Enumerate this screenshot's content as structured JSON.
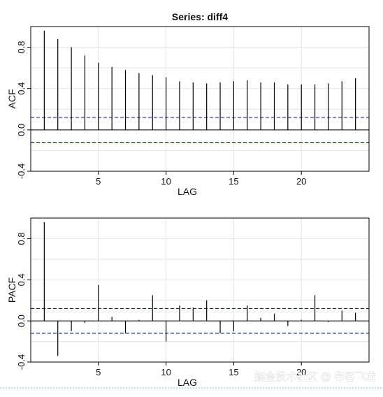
{
  "watermark": "掘金技术社区 @ 布客飞龙",
  "chart_data": [
    {
      "type": "bar",
      "title": "Series:  diff4",
      "xlabel": "LAG",
      "ylabel": "ACF",
      "xlim": [
        0,
        25
      ],
      "ylim": [
        -0.4,
        1.0
      ],
      "xticks": [
        5,
        10,
        15,
        20
      ],
      "yticks": [
        -0.4,
        0.0,
        0.4,
        0.8
      ],
      "grid": true,
      "confidence_bounds": [
        0.12,
        -0.12
      ],
      "lags": [
        1,
        2,
        3,
        4,
        5,
        6,
        7,
        8,
        9,
        10,
        11,
        12,
        13,
        14,
        15,
        16,
        17,
        18,
        19,
        20,
        21,
        22,
        23,
        24
      ],
      "values": [
        0.96,
        0.88,
        0.8,
        0.72,
        0.65,
        0.61,
        0.58,
        0.55,
        0.53,
        0.51,
        0.47,
        0.46,
        0.45,
        0.46,
        0.47,
        0.48,
        0.46,
        0.46,
        0.44,
        0.44,
        0.44,
        0.45,
        0.47,
        0.5
      ]
    },
    {
      "type": "bar",
      "title": "",
      "xlabel": "LAG",
      "ylabel": "PACF",
      "xlim": [
        0,
        25
      ],
      "ylim": [
        -0.4,
        1.0
      ],
      "xticks": [
        5,
        10,
        15,
        20
      ],
      "yticks": [
        -0.4,
        0.0,
        0.4,
        0.8
      ],
      "grid": true,
      "confidence_bounds": [
        0.12,
        -0.12
      ],
      "lags": [
        1,
        2,
        3,
        4,
        5,
        6,
        7,
        8,
        9,
        10,
        11,
        12,
        13,
        14,
        15,
        16,
        17,
        18,
        19,
        20,
        21,
        22,
        23,
        24
      ],
      "values": [
        0.96,
        -0.34,
        -0.1,
        -0.02,
        0.35,
        0.04,
        -0.12,
        0.01,
        0.25,
        -0.2,
        0.15,
        0.13,
        0.2,
        -0.12,
        -0.1,
        0.15,
        0.03,
        0.07,
        -0.05,
        0.01,
        0.25,
        -0.01,
        0.1,
        0.08
      ]
    }
  ]
}
